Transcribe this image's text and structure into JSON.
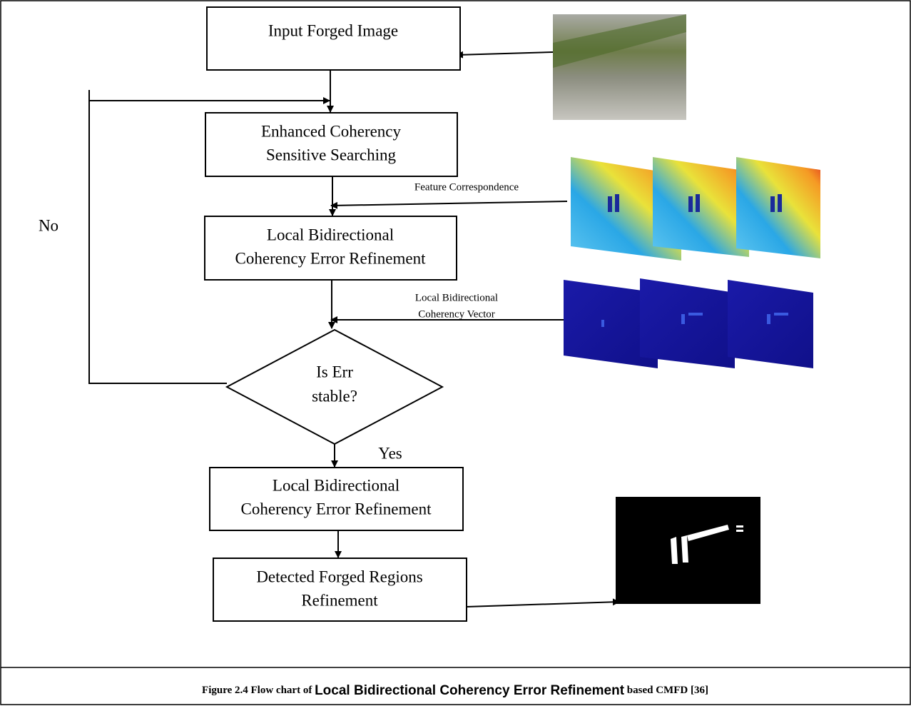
{
  "nodes": [
    {
      "lines": [
        "Input Forged Image"
      ]
    },
    {
      "lines": [
        "Enhanced Coherency",
        "Sensitive Searching"
      ]
    },
    {
      "lines": [
        "Local Bidirectional",
        "Coherency Error Refinement"
      ]
    },
    {
      "lines": [
        "Is Err",
        "stable?"
      ]
    },
    {
      "lines": [
        "Local Bidirectional",
        "Coherency Error Refinement"
      ]
    },
    {
      "lines": [
        "Detected Forged Regions",
        "Refinement"
      ]
    }
  ],
  "edge_labels": {
    "no": "No",
    "yes": "Yes",
    "feature": [
      "Feature Correspondence"
    ],
    "vector": [
      "Local Bidirectional",
      "Coherency Vector"
    ]
  },
  "caption": {
    "prefix": "Figure 2.4 Flow chart of ",
    "emphasis": "Local Bidirectional Coherency Error Refinement",
    "suffix": " based CMFD [36]"
  }
}
